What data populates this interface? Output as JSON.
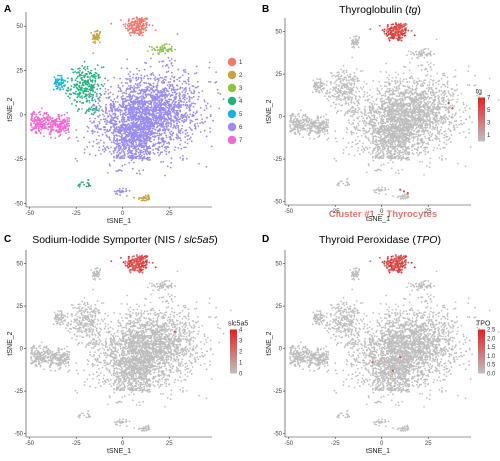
{
  "chart_data": [
    {
      "panel": "A",
      "type": "scatter",
      "title": "",
      "xlabel": "tSNE_1",
      "ylabel": "tSNE_2",
      "xlim": [
        -52,
        48
      ],
      "ylim": [
        -52,
        58
      ],
      "xticks": [
        -50,
        -25,
        0,
        25
      ],
      "yticks": [
        -50,
        -25,
        0,
        25,
        50
      ],
      "grid": false,
      "legend_position": "right",
      "series": [
        {
          "name": "1",
          "color": "#f07a6e",
          "center": [
            8,
            50
          ],
          "spread": [
            3.5,
            3
          ],
          "count": 170
        },
        {
          "name": "2",
          "color": "#c8a23a",
          "center": [
            -14,
            44
          ],
          "spread": [
            1.2,
            2.2
          ],
          "count": 45
        },
        {
          "name": "3",
          "color": "#8cc63f",
          "center": [
            21,
            37
          ],
          "spread": [
            3,
            1.2
          ],
          "count": 55
        },
        {
          "name": "4",
          "color": "#22b07d",
          "center": [
            -20,
            16
          ],
          "spread": [
            4.5,
            5.5
          ],
          "count": 260
        },
        {
          "name": "5",
          "color": "#1ab2e0",
          "center": [
            -34,
            18
          ],
          "spread": [
            1.5,
            2
          ],
          "count": 60
        },
        {
          "name": "6",
          "color": "#9a8cf0",
          "center": [
            14,
            0
          ],
          "spread": [
            13,
            11
          ],
          "count": 2600
        },
        {
          "name": "7",
          "color": "#f26ad0",
          "center": [
            -39,
            -5
          ],
          "spread": [
            8,
            3
          ],
          "count": 340
        }
      ]
    },
    {
      "panel": "B",
      "type": "scatter",
      "title": "Thyroglobulin (tg)",
      "xlabel": "tSNE_1",
      "ylabel": "tSNE_2",
      "xlim": [
        -52,
        48
      ],
      "ylim": [
        -52,
        58
      ],
      "xticks": [
        -50,
        -25,
        0,
        25
      ],
      "yticks": [
        -50,
        -25,
        0,
        25,
        50
      ],
      "color_scale": {
        "title": "tg",
        "min": 0,
        "max": 7,
        "ticks": [
          1,
          3,
          5,
          7
        ],
        "low_color": "#c0c0c0",
        "high_color": "#e82020"
      },
      "grid": false,
      "legend_position": "right"
    },
    {
      "panel": "C",
      "type": "scatter",
      "title": "Sodium-Iodide Symporter (NIS / slc5a5)",
      "xlabel": "tSNE_1",
      "ylabel": "tSNE_2",
      "xlim": [
        -52,
        48
      ],
      "ylim": [
        -52,
        58
      ],
      "xticks": [
        -50,
        -25,
        0,
        25
      ],
      "yticks": [
        -50,
        -25,
        0,
        25,
        50
      ],
      "color_scale": {
        "title": "slc5a5",
        "min": 0,
        "max": 4,
        "ticks": [
          0,
          1,
          2,
          3,
          4
        ],
        "low_color": "#c0c0c0",
        "high_color": "#e82020"
      },
      "grid": false,
      "legend_position": "right"
    },
    {
      "panel": "D",
      "type": "scatter",
      "title": "Thyroid Peroxidase (TPO)",
      "xlabel": "tSNE_1",
      "ylabel": "tSNE_2",
      "xlim": [
        -52,
        48
      ],
      "ylim": [
        -52,
        58
      ],
      "xticks": [
        -50,
        -25,
        0,
        25
      ],
      "yticks": [
        -50,
        -25,
        0,
        25,
        50
      ],
      "color_scale": {
        "title": "TPO",
        "min": 0,
        "max": 2.5,
        "ticks": [
          0.0,
          0.5,
          1.0,
          1.5,
          2.0,
          2.5
        ],
        "low_color": "#c0c0c0",
        "high_color": "#e82020"
      },
      "grid": false,
      "legend_position": "right"
    }
  ],
  "panels": {
    "A": {
      "letter": "A"
    },
    "B": {
      "letter": "B",
      "title_plain": "Thyroglobulin (",
      "title_italic": "tg",
      "title_end": ")"
    },
    "C": {
      "letter": "C",
      "title_plain": "Sodium-Iodide Symporter (NIS / ",
      "title_italic": "slc5a5",
      "title_end": ")"
    },
    "D": {
      "letter": "D",
      "title_plain": "Thyroid Peroxidase (",
      "title_italic": "TPO",
      "title_end": ")"
    }
  },
  "caption": "Cluster #1 -- Thyrocytes",
  "caption_color": "#e8736a",
  "background_cell_color": "#bdbdbd"
}
